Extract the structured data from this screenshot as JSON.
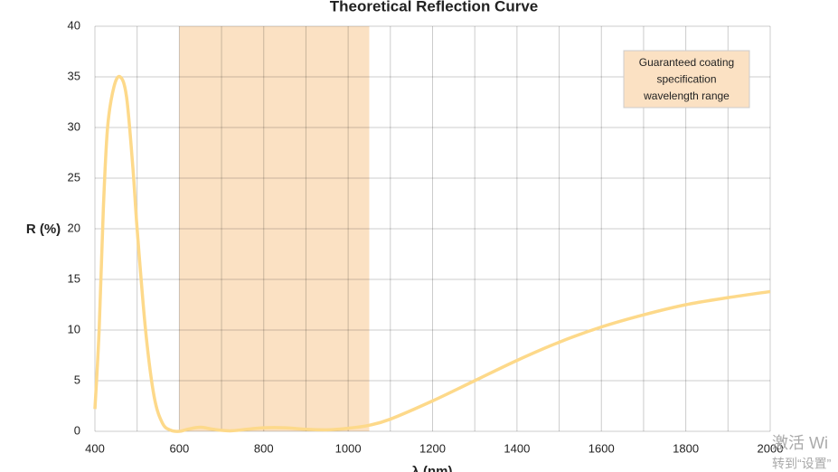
{
  "chart_data": {
    "type": "line",
    "title": "Theoretical Reflection Curve",
    "x_label": "λ (nm)",
    "y_label": "R (%)",
    "xlim": [
      400,
      2000
    ],
    "ylim": [
      0,
      40
    ],
    "xticks": [
      400,
      600,
      800,
      1000,
      1200,
      1400,
      1600,
      1800,
      2000
    ],
    "x_grid": [
      500,
      700,
      900,
      1100,
      1300,
      1500,
      1700,
      1900
    ],
    "yticks": [
      0,
      5,
      10,
      15,
      20,
      25,
      30,
      35,
      40
    ],
    "grid": true,
    "shaded_range": [
      600,
      1050
    ],
    "shade_color": "#fbe1c3",
    "annotation": [
      "Guaranteed coating",
      "specification",
      "wavelength range"
    ],
    "watermark": [
      "激活 Wi",
      "转到“设置”"
    ],
    "series": [
      {
        "color": "#fdd98a",
        "x": [
          400,
          410,
          420,
          430,
          445,
          460,
          475,
          490,
          500,
          520,
          540,
          560,
          580,
          600,
          620,
          650,
          680,
          720,
          760,
          800,
          850,
          900,
          950,
          1000,
          1050,
          1100,
          1200,
          1300,
          1400,
          1500,
          1600,
          1700,
          1800,
          1900,
          2000
        ],
        "values": [
          2.2,
          10,
          22,
          30,
          34,
          35,
          33,
          26,
          20,
          10,
          3.5,
          0.8,
          0.1,
          0,
          0.2,
          0.4,
          0.2,
          0.05,
          0.2,
          0.35,
          0.35,
          0.2,
          0.15,
          0.3,
          0.6,
          1.2,
          3,
          5,
          7,
          8.8,
          10.3,
          11.5,
          12.5,
          13.2,
          13.8
        ]
      }
    ]
  }
}
